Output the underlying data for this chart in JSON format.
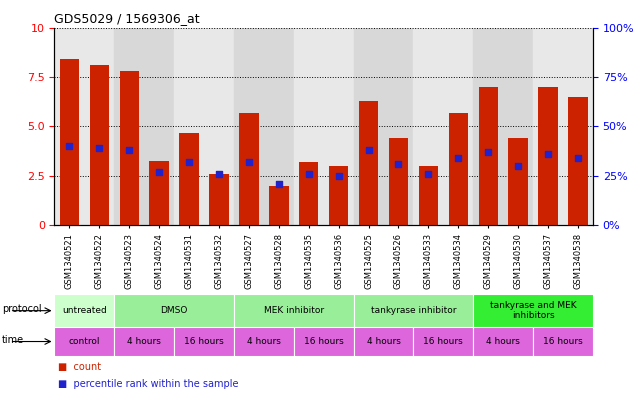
{
  "title": "GDS5029 / 1569306_at",
  "samples": [
    "GSM1340521",
    "GSM1340522",
    "GSM1340523",
    "GSM1340524",
    "GSM1340531",
    "GSM1340532",
    "GSM1340527",
    "GSM1340528",
    "GSM1340535",
    "GSM1340536",
    "GSM1340525",
    "GSM1340526",
    "GSM1340533",
    "GSM1340534",
    "GSM1340529",
    "GSM1340530",
    "GSM1340537",
    "GSM1340538"
  ],
  "counts": [
    8.4,
    8.1,
    7.8,
    3.25,
    4.65,
    2.6,
    5.7,
    2.0,
    3.2,
    3.0,
    6.3,
    4.4,
    3.0,
    5.7,
    7.0,
    4.4,
    7.0,
    6.5
  ],
  "percentile": [
    40,
    39,
    38,
    27,
    32,
    26,
    32,
    21,
    26,
    25,
    38,
    31,
    26,
    34,
    37,
    30,
    36,
    34
  ],
  "ylim_left": [
    0,
    10
  ],
  "ylim_right": [
    0,
    100
  ],
  "yticks_left": [
    0,
    2.5,
    5.0,
    7.5,
    10
  ],
  "yticks_right": [
    0,
    25,
    50,
    75,
    100
  ],
  "bar_color": "#cc2200",
  "dot_color": "#2222cc",
  "col_bg_colors": [
    "#e8e8e8",
    "#e8e8e8",
    "#d8d8d8",
    "#d8d8d8",
    "#e8e8e8",
    "#e8e8e8",
    "#d8d8d8",
    "#d8d8d8",
    "#e8e8e8",
    "#e8e8e8",
    "#d8d8d8",
    "#d8d8d8",
    "#e8e8e8",
    "#e8e8e8",
    "#d8d8d8",
    "#d8d8d8",
    "#e8e8e8",
    "#e8e8e8"
  ],
  "proto_groups": [
    {
      "label": "untreated",
      "start": 0,
      "end": 2,
      "color": "#ccffcc"
    },
    {
      "label": "DMSO",
      "start": 2,
      "end": 6,
      "color": "#99ee99"
    },
    {
      "label": "MEK inhibitor",
      "start": 6,
      "end": 10,
      "color": "#99ee99"
    },
    {
      "label": "tankyrase inhibitor",
      "start": 10,
      "end": 14,
      "color": "#99ee99"
    },
    {
      "label": "tankyrase and MEK\ninhibitors",
      "start": 14,
      "end": 18,
      "color": "#33ee33"
    }
  ],
  "time_groups": [
    {
      "label": "control",
      "start": 0,
      "end": 2
    },
    {
      "label": "4 hours",
      "start": 2,
      "end": 4
    },
    {
      "label": "16 hours",
      "start": 4,
      "end": 6
    },
    {
      "label": "4 hours",
      "start": 6,
      "end": 8
    },
    {
      "label": "16 hours",
      "start": 8,
      "end": 10
    },
    {
      "label": "4 hours",
      "start": 10,
      "end": 12
    },
    {
      "label": "16 hours",
      "start": 12,
      "end": 14
    },
    {
      "label": "4 hours",
      "start": 14,
      "end": 16
    },
    {
      "label": "16 hours",
      "start": 16,
      "end": 18
    }
  ],
  "time_color": "#dd66dd",
  "n_samples": 18
}
